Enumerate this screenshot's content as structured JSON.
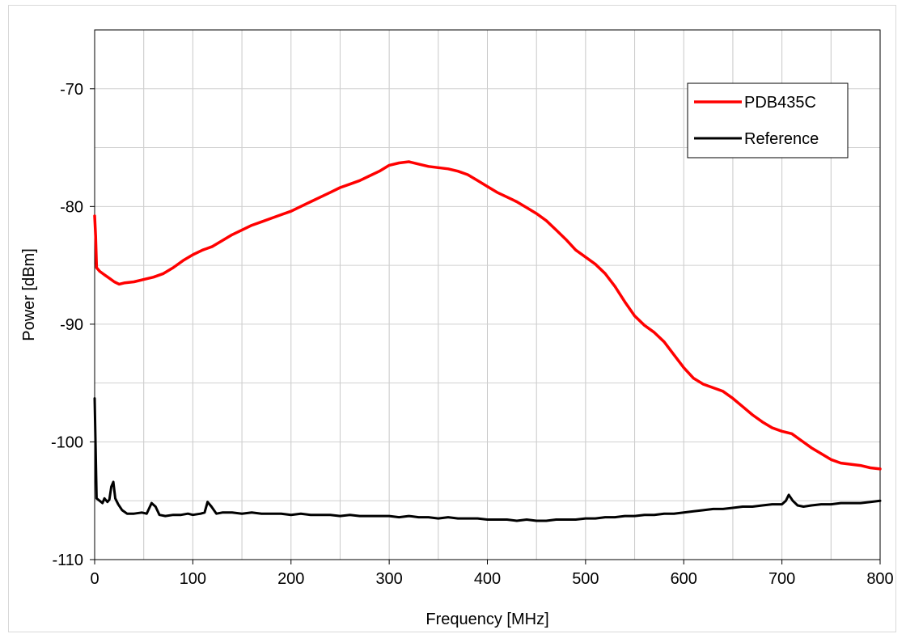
{
  "chart_data": {
    "type": "line",
    "title": "",
    "xlabel": "Frequency  [MHz]",
    "ylabel": "Power [dBm]",
    "xlim": [
      0,
      800
    ],
    "ylim": [
      -110,
      -65
    ],
    "xticks": [
      0,
      100,
      200,
      300,
      400,
      500,
      600,
      700,
      800
    ],
    "yticks": [
      -110,
      -100,
      -90,
      -80,
      -70
    ],
    "x_minor_step": 50,
    "y_minor_step": 5,
    "grid": true,
    "legend_position": "top-right",
    "series": [
      {
        "name": "PDB435C",
        "color": "#ff0000",
        "points": [
          [
            0,
            -80.8
          ],
          [
            1,
            -82.5
          ],
          [
            2,
            -85.2
          ],
          [
            5,
            -85.5
          ],
          [
            10,
            -85.8
          ],
          [
            15,
            -86.1
          ],
          [
            20,
            -86.4
          ],
          [
            25,
            -86.6
          ],
          [
            30,
            -86.5
          ],
          [
            40,
            -86.4
          ],
          [
            50,
            -86.2
          ],
          [
            60,
            -86.0
          ],
          [
            70,
            -85.7
          ],
          [
            80,
            -85.2
          ],
          [
            90,
            -84.6
          ],
          [
            100,
            -84.1
          ],
          [
            110,
            -83.7
          ],
          [
            120,
            -83.4
          ],
          [
            130,
            -82.9
          ],
          [
            140,
            -82.4
          ],
          [
            150,
            -82.0
          ],
          [
            160,
            -81.6
          ],
          [
            170,
            -81.3
          ],
          [
            180,
            -81.0
          ],
          [
            190,
            -80.7
          ],
          [
            200,
            -80.4
          ],
          [
            210,
            -80.0
          ],
          [
            220,
            -79.6
          ],
          [
            230,
            -79.2
          ],
          [
            240,
            -78.8
          ],
          [
            250,
            -78.4
          ],
          [
            260,
            -78.1
          ],
          [
            270,
            -77.8
          ],
          [
            280,
            -77.4
          ],
          [
            290,
            -77.0
          ],
          [
            300,
            -76.5
          ],
          [
            310,
            -76.3
          ],
          [
            320,
            -76.2
          ],
          [
            330,
            -76.4
          ],
          [
            340,
            -76.6
          ],
          [
            350,
            -76.7
          ],
          [
            360,
            -76.8
          ],
          [
            370,
            -77.0
          ],
          [
            380,
            -77.3
          ],
          [
            390,
            -77.8
          ],
          [
            400,
            -78.3
          ],
          [
            410,
            -78.8
          ],
          [
            420,
            -79.2
          ],
          [
            430,
            -79.6
          ],
          [
            440,
            -80.1
          ],
          [
            450,
            -80.6
          ],
          [
            460,
            -81.2
          ],
          [
            470,
            -82.0
          ],
          [
            480,
            -82.8
          ],
          [
            490,
            -83.7
          ],
          [
            500,
            -84.3
          ],
          [
            510,
            -84.9
          ],
          [
            520,
            -85.7
          ],
          [
            530,
            -86.8
          ],
          [
            540,
            -88.1
          ],
          [
            550,
            -89.3
          ],
          [
            560,
            -90.1
          ],
          [
            570,
            -90.7
          ],
          [
            580,
            -91.5
          ],
          [
            590,
            -92.6
          ],
          [
            600,
            -93.7
          ],
          [
            610,
            -94.6
          ],
          [
            620,
            -95.1
          ],
          [
            630,
            -95.4
          ],
          [
            640,
            -95.7
          ],
          [
            650,
            -96.3
          ],
          [
            660,
            -97.0
          ],
          [
            670,
            -97.7
          ],
          [
            680,
            -98.3
          ],
          [
            690,
            -98.8
          ],
          [
            700,
            -99.1
          ],
          [
            710,
            -99.3
          ],
          [
            720,
            -99.9
          ],
          [
            730,
            -100.5
          ],
          [
            740,
            -101.0
          ],
          [
            750,
            -101.5
          ],
          [
            760,
            -101.8
          ],
          [
            770,
            -101.9
          ],
          [
            780,
            -102.0
          ],
          [
            790,
            -102.2
          ],
          [
            800,
            -102.3
          ]
        ]
      },
      {
        "name": "Reference",
        "color": "#000000",
        "points": [
          [
            0,
            -96.3
          ],
          [
            1,
            -100.5
          ],
          [
            2,
            -104.8
          ],
          [
            5,
            -105.0
          ],
          [
            8,
            -105.2
          ],
          [
            10,
            -104.8
          ],
          [
            13,
            -105.1
          ],
          [
            15,
            -104.9
          ],
          [
            17,
            -103.8
          ],
          [
            19,
            -103.4
          ],
          [
            21,
            -104.8
          ],
          [
            24,
            -105.3
          ],
          [
            28,
            -105.8
          ],
          [
            33,
            -106.1
          ],
          [
            40,
            -106.1
          ],
          [
            48,
            -106.0
          ],
          [
            53,
            -106.1
          ],
          [
            58,
            -105.2
          ],
          [
            62,
            -105.5
          ],
          [
            66,
            -106.2
          ],
          [
            72,
            -106.3
          ],
          [
            80,
            -106.2
          ],
          [
            88,
            -106.2
          ],
          [
            95,
            -106.1
          ],
          [
            100,
            -106.2
          ],
          [
            108,
            -106.1
          ],
          [
            112,
            -106.0
          ],
          [
            115,
            -105.1
          ],
          [
            119,
            -105.5
          ],
          [
            124,
            -106.1
          ],
          [
            130,
            -106.0
          ],
          [
            140,
            -106.0
          ],
          [
            150,
            -106.1
          ],
          [
            160,
            -106.0
          ],
          [
            170,
            -106.1
          ],
          [
            180,
            -106.1
          ],
          [
            190,
            -106.1
          ],
          [
            200,
            -106.2
          ],
          [
            210,
            -106.1
          ],
          [
            220,
            -106.2
          ],
          [
            230,
            -106.2
          ],
          [
            240,
            -106.2
          ],
          [
            250,
            -106.3
          ],
          [
            260,
            -106.2
          ],
          [
            270,
            -106.3
          ],
          [
            280,
            -106.3
          ],
          [
            290,
            -106.3
          ],
          [
            300,
            -106.3
          ],
          [
            310,
            -106.4
          ],
          [
            320,
            -106.3
          ],
          [
            330,
            -106.4
          ],
          [
            340,
            -106.4
          ],
          [
            350,
            -106.5
          ],
          [
            360,
            -106.4
          ],
          [
            370,
            -106.5
          ],
          [
            380,
            -106.5
          ],
          [
            390,
            -106.5
          ],
          [
            400,
            -106.6
          ],
          [
            410,
            -106.6
          ],
          [
            420,
            -106.6
          ],
          [
            430,
            -106.7
          ],
          [
            440,
            -106.6
          ],
          [
            450,
            -106.7
          ],
          [
            460,
            -106.7
          ],
          [
            470,
            -106.6
          ],
          [
            480,
            -106.6
          ],
          [
            490,
            -106.6
          ],
          [
            500,
            -106.5
          ],
          [
            510,
            -106.5
          ],
          [
            520,
            -106.4
          ],
          [
            530,
            -106.4
          ],
          [
            540,
            -106.3
          ],
          [
            550,
            -106.3
          ],
          [
            560,
            -106.2
          ],
          [
            570,
            -106.2
          ],
          [
            580,
            -106.1
          ],
          [
            590,
            -106.1
          ],
          [
            600,
            -106.0
          ],
          [
            610,
            -105.9
          ],
          [
            620,
            -105.8
          ],
          [
            630,
            -105.7
          ],
          [
            640,
            -105.7
          ],
          [
            650,
            -105.6
          ],
          [
            660,
            -105.5
          ],
          [
            670,
            -105.5
          ],
          [
            680,
            -105.4
          ],
          [
            690,
            -105.3
          ],
          [
            700,
            -105.3
          ],
          [
            704,
            -105.0
          ],
          [
            707,
            -104.5
          ],
          [
            711,
            -105.0
          ],
          [
            716,
            -105.4
          ],
          [
            722,
            -105.5
          ],
          [
            730,
            -105.4
          ],
          [
            740,
            -105.3
          ],
          [
            750,
            -105.3
          ],
          [
            760,
            -105.2
          ],
          [
            770,
            -105.2
          ],
          [
            780,
            -105.2
          ],
          [
            790,
            -105.1
          ],
          [
            800,
            -105.0
          ]
        ]
      }
    ]
  }
}
